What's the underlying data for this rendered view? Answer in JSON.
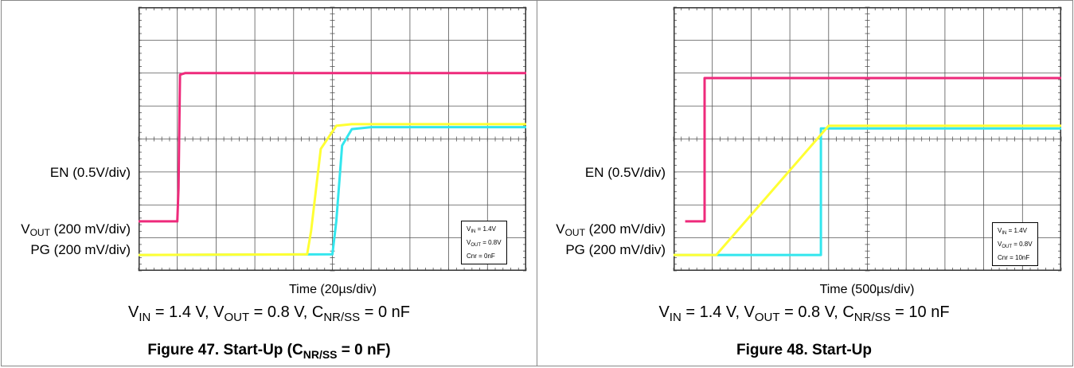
{
  "figures": [
    {
      "caption": {
        "pre": "Figure 47. Start-Up (C",
        "sub": "NR/SS",
        "post": " = 0 nF)"
      },
      "conditions": {
        "vin": "V",
        "vin_sub": "IN",
        "vin_val": " = 1.4 V, V",
        "vout_sub": "OUT",
        "vout_val": " = 0.8 V, C",
        "c_sub": "NR/SS",
        "c_val": " = 0 nF"
      },
      "xlabel": "Time (20µs/div)",
      "labels": {
        "en": "EN (0.5V/div)",
        "vout_pre": "V",
        "vout_sub": "OUT",
        "vout_post": " (200 mV/div)",
        "pg": "PG (200 mV/div)"
      },
      "infobox": {
        "l1a": "V",
        "l1s": "IN",
        "l1b": " = 1.4V",
        "l2a": "V",
        "l2s": "OUT",
        "l2b": " = 0.8V",
        "l3": "Cnr = 0nF"
      }
    },
    {
      "caption": {
        "pre": "Figure 48. Start-Up",
        "sub": "",
        "post": ""
      },
      "conditions": {
        "vin": "V",
        "vin_sub": "IN",
        "vin_val": " = 1.4 V, V",
        "vout_sub": "OUT",
        "vout_val": " = 0.8 V, C",
        "c_sub": "NR/SS",
        "c_val": " = 10 nF"
      },
      "xlabel": "Time (500µs/div)",
      "labels": {
        "en": "EN (0.5V/div)",
        "vout_pre": "V",
        "vout_sub": "OUT",
        "vout_post": " (200 mV/div)",
        "pg": "PG (200 mV/div)"
      },
      "infobox": {
        "l1a": "V",
        "l1s": "IN",
        "l1b": " = 1.4V",
        "l2a": "V",
        "l2s": "OUT",
        "l2b": " = 0.8V",
        "l3": "Cnr = 10nF"
      }
    }
  ],
  "chart_data": [
    {
      "type": "line",
      "grid": true,
      "xlim": [
        0,
        10
      ],
      "ylim": [
        0,
        8
      ],
      "x_unit_per_div": "20µs",
      "colors": {
        "en": "#ee2a7b",
        "vout": "#ffff33",
        "pg": "#33e6ee"
      },
      "series": [
        {
          "key": "en",
          "points": [
            [
              0.0,
              1.5
            ],
            [
              1.0,
              1.5
            ],
            [
              1.03,
              2.5
            ],
            [
              1.07,
              5.95
            ],
            [
              1.2,
              6.0
            ],
            [
              10,
              6.0
            ]
          ]
        },
        {
          "key": "vout",
          "points": [
            [
              0.0,
              0.48
            ],
            [
              4.35,
              0.5
            ],
            [
              4.45,
              1.2
            ],
            [
              4.7,
              3.7
            ],
            [
              5.1,
              4.4
            ],
            [
              5.5,
              4.45
            ],
            [
              10,
              4.45
            ]
          ]
        },
        {
          "key": "pg",
          "points": [
            [
              0.0,
              0.48
            ],
            [
              5.0,
              0.5
            ],
            [
              5.1,
              1.5
            ],
            [
              5.25,
              3.8
            ],
            [
              5.5,
              4.3
            ],
            [
              6.0,
              4.36
            ],
            [
              10,
              4.36
            ]
          ]
        }
      ]
    },
    {
      "type": "line",
      "grid": true,
      "xlim": [
        0,
        10
      ],
      "ylim": [
        0,
        8
      ],
      "x_unit_per_div": "500µs",
      "colors": {
        "en": "#ee2a7b",
        "vout": "#ffff33",
        "pg": "#33e6ee"
      },
      "series": [
        {
          "key": "en",
          "points": [
            [
              0.3,
              1.5
            ],
            [
              0.8,
              1.5
            ],
            [
              0.8,
              5.85
            ],
            [
              10,
              5.85
            ]
          ]
        },
        {
          "key": "vout",
          "points": [
            [
              0.0,
              0.48
            ],
            [
              1.1,
              0.48
            ],
            [
              4.0,
              4.4
            ],
            [
              10,
              4.4
            ]
          ]
        },
        {
          "key": "pg",
          "points": [
            [
              0.0,
              0.48
            ],
            [
              3.8,
              0.48
            ],
            [
              3.8,
              4.32
            ],
            [
              10,
              4.32
            ]
          ]
        }
      ]
    }
  ]
}
